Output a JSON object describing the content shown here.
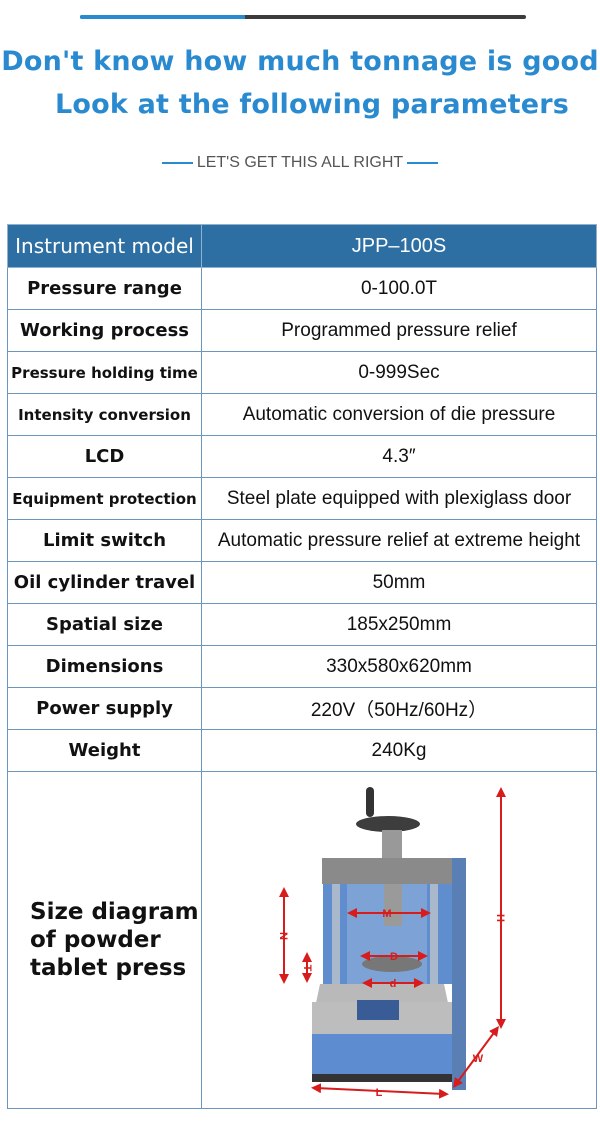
{
  "progress_bar": {
    "fraction": 0.37,
    "colors": {
      "fill": "#2a8ad0",
      "track": "#3c3c3c"
    }
  },
  "heading": {
    "line1": "Don't know how much tonnage is good",
    "line2": "Look at the following parameters",
    "color": "#2a8ad0"
  },
  "subheading": "LET'S GET THIS ALL RIGHT",
  "table": {
    "header": {
      "label": "Instrument model",
      "value": "JPP–100S",
      "color": "#2d6fa3"
    },
    "rows": [
      {
        "label": "Pressure range",
        "value": "0-100.0T"
      },
      {
        "label": "Working process",
        "value": "Programmed pressure relief"
      },
      {
        "label": "Pressure holding time",
        "value": "0-999Sec"
      },
      {
        "label": "Intensity conversion",
        "value": "Automatic conversion of die pressure"
      },
      {
        "label": "LCD",
        "value": "4.3″"
      },
      {
        "label": "Equipment protection",
        "value": "Steel plate equipped with plexiglass door"
      },
      {
        "label": "Limit switch",
        "value": "Automatic pressure relief at extreme height"
      },
      {
        "label": "Oil cylinder travel",
        "value": "50mm"
      },
      {
        "label": "Spatial size",
        "value": "185x250mm"
      },
      {
        "label": "Dimensions",
        "value": "330x580x620mm"
      },
      {
        "label": "Power supply",
        "value": "220V（50Hz/60Hz）"
      },
      {
        "label": "Weight",
        "value": "240Kg"
      }
    ],
    "diagram": {
      "label": "Size diagram of powder tablet press",
      "dimension_labels": [
        "M",
        "D",
        "d",
        "N",
        "T",
        "H",
        "W",
        "L"
      ]
    }
  }
}
